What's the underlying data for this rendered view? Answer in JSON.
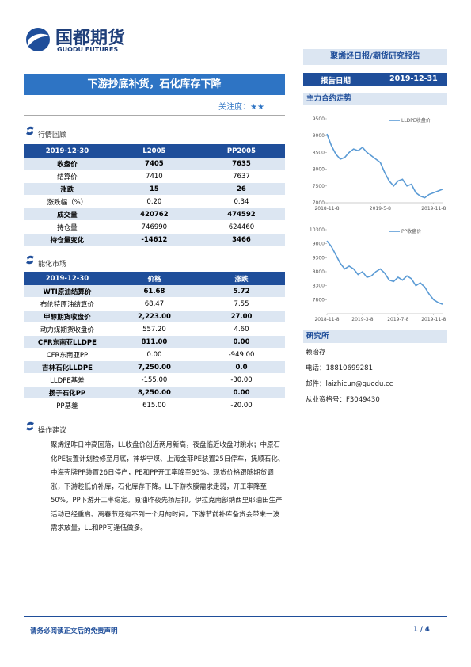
{
  "header": {
    "logo_cn": "国都期货",
    "logo_en": "GUODU FUTURES",
    "report_type": "聚烯烃日报/期货研究报告",
    "date_label": "报告日期",
    "date": "2019-12-31"
  },
  "title": "下游抄底补货，石化库存下降",
  "attention": "关注度：★★",
  "section1": {
    "heading": "行情回顾",
    "table": {
      "header": [
        "2019-12-30",
        "L2005",
        "PP2005"
      ],
      "rows": [
        [
          "收盘价",
          "7405",
          "7635"
        ],
        [
          "结算价",
          "7410",
          "7637"
        ],
        [
          "涨跌",
          "15",
          "26"
        ],
        [
          "涨跌幅（%）",
          "0.20",
          "0.34"
        ],
        [
          "成交量",
          "420762",
          "474592"
        ],
        [
          "持仓量",
          "746990",
          "624460"
        ],
        [
          "持仓量变化",
          "-14612",
          "3466"
        ]
      ]
    }
  },
  "section2": {
    "heading": "能化市场",
    "table": {
      "header": [
        "2019-12-30",
        "价格",
        "涨跌"
      ],
      "rows": [
        [
          "WTI原油结算价",
          "61.68",
          "5.72"
        ],
        [
          "布伦特原油结算价",
          "68.47",
          "7.55"
        ],
        [
          "甲醇期货收盘价",
          "2,223.00",
          "27.00"
        ],
        [
          "动力煤期货收盘价",
          "557.20",
          "4.60"
        ],
        [
          "CFR东南亚LLDPE",
          "811.00",
          "0.00"
        ],
        [
          "CFR东南亚PP",
          "0.00",
          "-949.00"
        ],
        [
          "吉林石化LLDPE",
          "7,250.00",
          "0.0"
        ],
        [
          "LLDPE基差",
          "-155.00",
          "-30.00"
        ],
        [
          "扬子石化PP",
          "8,250.00",
          "0.00"
        ],
        [
          "PP基差",
          "615.00",
          "-20.00"
        ]
      ]
    }
  },
  "section3": {
    "heading": "操作建议",
    "text": "聚烯烃昨日冲高回落，LL收盘价创近两月新高，夜盘临近收盘时跳水；中原石化PE装置计划检修至月底，神华宁煤、上海金菲PE装置25日停车，抚顺石化、中海壳牌PP装置26日停产，PE和PP开工率降至93%。现货价格跟随期货调涨，下游趁低价补库，石化库存下降。LL下游农膜需求走弱，开工率降至50%，PP下游开工率稳定。原油昨夜先扬后抑，伊拉克南部纳西里耶油田生产活动已经重启。离春节还有不到一个月的时间，下游节前补库备货会带来一波需求放量，LL和PP可逢低做多。"
  },
  "sidebar": {
    "chart_heading": "主力合约走势",
    "charts": [
      {
        "type": "line",
        "series": [
          {
            "name": "LLDPE收盘价",
            "color": "#5b9bd5",
            "values": [
              9050,
              8700,
              8450,
              8300,
              8350,
              8500,
              8600,
              8550,
              8650,
              8500,
              8400,
              8300,
              8200,
              7900,
              7650,
              7500,
              7650,
              7700,
              7500,
              7550,
              7300,
              7200,
              7150,
              7250,
              7300,
              7350,
              7405
            ]
          }
        ],
        "ylim": [
          7000,
          9500
        ],
        "yticks": [
          7000,
          7500,
          8000,
          8500,
          9000,
          9500
        ],
        "xticks": [
          {
            "value": 0,
            "label": "2018-11-8"
          },
          {
            "value": 12,
            "label": "2019-5-8"
          },
          {
            "value": 24,
            "label": "2019-11-8"
          }
        ]
      },
      {
        "type": "line",
        "series": [
          {
            "name": "PP收盘价",
            "color": "#5b9bd5",
            "values": [
              9900,
              9700,
              9400,
              9100,
              8900,
              9000,
              8900,
              8700,
              8800,
              8600,
              8650,
              8800,
              8900,
              8750,
              8500,
              8450,
              8600,
              8500,
              8650,
              8550,
              8300,
              8400,
              8250,
              8000,
              7800,
              7700,
              7635
            ]
          }
        ],
        "ylim": [
          7300,
          10300
        ],
        "yticks": [
          7800,
          8300,
          8800,
          9300,
          9800,
          10300
        ],
        "xticks": [
          {
            "value": 0,
            "label": "2018-11-8"
          },
          {
            "value": 8,
            "label": "2019-3-8"
          },
          {
            "value": 16,
            "label": "2019-7-8"
          },
          {
            "value": 24,
            "label": "2019-11-8"
          }
        ]
      }
    ],
    "institute": "研究所",
    "analyst": "赖治存",
    "phone": "电话：18810699281",
    "email": "邮件：laizhicun@guodu.cc",
    "license": "从业资格号：F3049430"
  },
  "footer": {
    "disclaimer": "请务必阅读正文后的免责声明",
    "page": "1 / 4"
  }
}
